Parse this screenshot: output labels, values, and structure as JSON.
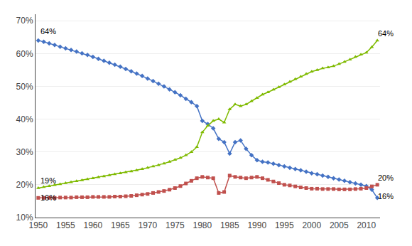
{
  "chart_data": {
    "type": "line",
    "x": [
      1950,
      1951,
      1952,
      1953,
      1954,
      1955,
      1956,
      1957,
      1958,
      1959,
      1960,
      1961,
      1962,
      1963,
      1964,
      1965,
      1966,
      1967,
      1968,
      1969,
      1970,
      1971,
      1972,
      1973,
      1974,
      1975,
      1976,
      1977,
      1978,
      1979,
      1980,
      1981,
      1982,
      1983,
      1984,
      1985,
      1986,
      1987,
      1988,
      1989,
      1990,
      1991,
      1992,
      1993,
      1994,
      1995,
      1996,
      1997,
      1998,
      1999,
      2000,
      2001,
      2002,
      2003,
      2004,
      2005,
      2006,
      2007,
      2008,
      2009,
      2010,
      2011,
      2012
    ],
    "series": [
      {
        "color": "#4472C4",
        "marker": "diamond",
        "values": [
          0.64,
          0.636,
          0.631,
          0.626,
          0.621,
          0.616,
          0.611,
          0.606,
          0.601,
          0.596,
          0.59,
          0.584,
          0.578,
          0.572,
          0.566,
          0.56,
          0.553,
          0.546,
          0.539,
          0.532,
          0.524,
          0.516,
          0.508,
          0.5,
          0.491,
          0.482,
          0.473,
          0.462,
          0.452,
          0.44,
          0.395,
          0.385,
          0.372,
          0.34,
          0.33,
          0.295,
          0.33,
          0.335,
          0.31,
          0.29,
          0.275,
          0.27,
          0.268,
          0.264,
          0.26,
          0.256,
          0.252,
          0.248,
          0.244,
          0.24,
          0.235,
          0.232,
          0.228,
          0.224,
          0.22,
          0.216,
          0.212,
          0.208,
          0.204,
          0.2,
          0.196,
          0.185,
          0.16
        ]
      },
      {
        "color": "#7FBA00",
        "marker": "triangle-up",
        "values": [
          0.19,
          0.193,
          0.196,
          0.199,
          0.202,
          0.205,
          0.208,
          0.211,
          0.214,
          0.217,
          0.22,
          0.223,
          0.226,
          0.229,
          0.232,
          0.235,
          0.238,
          0.241,
          0.244,
          0.248,
          0.252,
          0.256,
          0.26,
          0.265,
          0.27,
          0.276,
          0.282,
          0.29,
          0.3,
          0.315,
          0.36,
          0.38,
          0.395,
          0.4,
          0.39,
          0.43,
          0.445,
          0.44,
          0.445,
          0.455,
          0.465,
          0.475,
          0.482,
          0.49,
          0.498,
          0.506,
          0.514,
          0.522,
          0.53,
          0.538,
          0.545,
          0.55,
          0.555,
          0.558,
          0.562,
          0.568,
          0.575,
          0.582,
          0.59,
          0.597,
          0.603,
          0.62,
          0.64
        ]
      },
      {
        "color": "#C0504D",
        "marker": "square",
        "values": [
          0.16,
          0.16,
          0.16,
          0.16,
          0.161,
          0.161,
          0.161,
          0.162,
          0.162,
          0.162,
          0.163,
          0.163,
          0.163,
          0.163,
          0.164,
          0.164,
          0.165,
          0.166,
          0.168,
          0.17,
          0.172,
          0.175,
          0.178,
          0.181,
          0.185,
          0.19,
          0.196,
          0.204,
          0.212,
          0.22,
          0.224,
          0.222,
          0.22,
          0.175,
          0.178,
          0.228,
          0.224,
          0.222,
          0.22,
          0.222,
          0.224,
          0.22,
          0.215,
          0.21,
          0.205,
          0.2,
          0.198,
          0.195,
          0.192,
          0.19,
          0.188,
          0.188,
          0.187,
          0.187,
          0.187,
          0.186,
          0.186,
          0.186,
          0.187,
          0.188,
          0.19,
          0.195,
          0.2
        ]
      }
    ],
    "xlim": [
      1949.5,
      2012.5
    ],
    "xticks": [
      1950,
      1955,
      1960,
      1965,
      1970,
      1975,
      1980,
      1985,
      1990,
      1995,
      2000,
      2005,
      2010
    ],
    "ylim": [
      0.1,
      0.72
    ],
    "yticks": [
      {
        "value": 0.1,
        "label": "10%"
      },
      {
        "value": 0.2,
        "label": "20%"
      },
      {
        "value": 0.3,
        "label": "30%"
      },
      {
        "value": 0.4,
        "label": "40%"
      },
      {
        "value": 0.5,
        "label": "50%"
      },
      {
        "value": 0.6,
        "label": "60%"
      },
      {
        "value": 0.7,
        "label": "70%"
      }
    ],
    "grid": true,
    "annotations": [
      {
        "text": "64%",
        "x": 1950.2,
        "y": 0.65
      },
      {
        "text": "19%",
        "x": 1950.2,
        "y": 0.196
      },
      {
        "text": "16%",
        "x": 1950.2,
        "y": 0.143
      },
      {
        "text": "64%",
        "x": 2011.8,
        "y": 0.645
      },
      {
        "text": "20%",
        "x": 2011.8,
        "y": 0.205
      },
      {
        "text": "16%",
        "x": 2011.8,
        "y": 0.148
      }
    ]
  }
}
